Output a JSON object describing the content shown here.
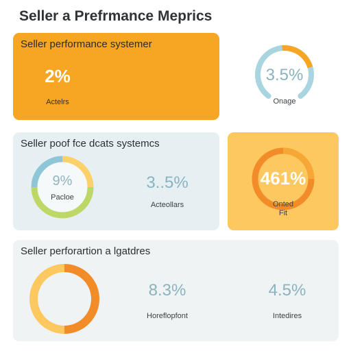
{
  "page": {
    "title": "Seller a Prefrmance Meprics"
  },
  "colors": {
    "orange": "#f6a623",
    "orange_dark": "#f28c28",
    "yellow": "#fcd16a",
    "blue": "#8ec6d8",
    "green": "#bcd867",
    "panel_blue": "#e6f0f3",
    "panel_gray": "#eff3f4",
    "panel_yellow": "#fcc85f"
  },
  "card1": {
    "title": "Seller performance systemer",
    "value": "2%",
    "label": "Actelrs"
  },
  "gauge1": {
    "value": "3.5%",
    "label": "Onage"
  },
  "card2": {
    "title": "Seller poof fce dcats systemcs",
    "donut_value": "9%",
    "donut_label": "Pacloe",
    "stat_value": "3..5%",
    "stat_label": "Acteollars"
  },
  "card3": {
    "value": "461%",
    "label_line1": "Onted",
    "label_line2": "Fit"
  },
  "card4": {
    "title": "Seller perforartion a lgatdres",
    "stat1_value": "8.3%",
    "stat1_label": "Horeflopfont",
    "stat2_value": "4.5%",
    "stat2_label": "Intedires"
  }
}
